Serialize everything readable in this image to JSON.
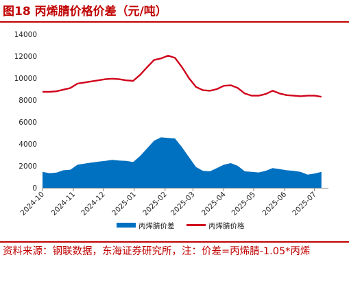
{
  "header": {
    "title": "图18  丙烯腈价格价差（元/吨）"
  },
  "footer": {
    "source": "资料来源：钢联数据，东海证券研究所，注：价差=丙烯腈-1.05*丙烯"
  },
  "colors": {
    "accent": "#c00000",
    "spread_fill": "#0070c0",
    "price_line": "#d0021b"
  },
  "chart_data": {
    "type": "area",
    "title": "",
    "xlabel": "",
    "ylabel": "",
    "ylim": [
      0,
      14000
    ],
    "yticks": [
      0,
      2000,
      4000,
      6000,
      8000,
      10000,
      12000,
      14000
    ],
    "xlim": [
      "2024-10-01",
      "2025-07-15"
    ],
    "xticks": [
      "2024-10",
      "2024-11",
      "2024-12",
      "2025-01",
      "2025-02",
      "2025-03",
      "2025-04",
      "2025-05",
      "2025-06",
      "2025-07"
    ],
    "grid": false,
    "legend_position": "bottom",
    "series": [
      {
        "name": "丙烯腈价差",
        "type": "area",
        "color": "#0070c0",
        "points": [
          [
            "2024-10-01",
            1450
          ],
          [
            "2024-10-08",
            1330
          ],
          [
            "2024-10-15",
            1380
          ],
          [
            "2024-10-22",
            1600
          ],
          [
            "2024-10-29",
            1650
          ],
          [
            "2024-11-05",
            2100
          ],
          [
            "2024-11-12",
            2200
          ],
          [
            "2024-11-19",
            2300
          ],
          [
            "2024-11-26",
            2380
          ],
          [
            "2024-12-03",
            2450
          ],
          [
            "2024-12-10",
            2550
          ],
          [
            "2024-12-17",
            2480
          ],
          [
            "2024-12-24",
            2450
          ],
          [
            "2024-12-31",
            2350
          ],
          [
            "2025-01-07",
            2900
          ],
          [
            "2025-01-14",
            3600
          ],
          [
            "2025-01-21",
            4300
          ],
          [
            "2025-01-28",
            4600
          ],
          [
            "2025-02-04",
            4550
          ],
          [
            "2025-02-11",
            4500
          ],
          [
            "2025-02-18",
            3700
          ],
          [
            "2025-02-25",
            2800
          ],
          [
            "2025-03-04",
            1900
          ],
          [
            "2025-03-11",
            1550
          ],
          [
            "2025-03-18",
            1500
          ],
          [
            "2025-03-25",
            1800
          ],
          [
            "2025-04-01",
            2100
          ],
          [
            "2025-04-08",
            2250
          ],
          [
            "2025-04-15",
            2000
          ],
          [
            "2025-04-22",
            1500
          ],
          [
            "2025-04-29",
            1450
          ],
          [
            "2025-05-06",
            1400
          ],
          [
            "2025-05-13",
            1550
          ],
          [
            "2025-05-20",
            1800
          ],
          [
            "2025-05-27",
            1700
          ],
          [
            "2025-06-03",
            1600
          ],
          [
            "2025-06-10",
            1550
          ],
          [
            "2025-06-17",
            1450
          ],
          [
            "2025-06-24",
            1200
          ],
          [
            "2025-07-01",
            1300
          ],
          [
            "2025-07-08",
            1450
          ]
        ]
      },
      {
        "name": "丙烯腈价格",
        "type": "line",
        "color": "#d0021b",
        "points": [
          [
            "2024-10-01",
            8750
          ],
          [
            "2024-10-08",
            8750
          ],
          [
            "2024-10-15",
            8800
          ],
          [
            "2024-10-22",
            8950
          ],
          [
            "2024-10-29",
            9100
          ],
          [
            "2024-11-05",
            9500
          ],
          [
            "2024-11-12",
            9600
          ],
          [
            "2024-11-19",
            9700
          ],
          [
            "2024-11-26",
            9800
          ],
          [
            "2024-12-03",
            9900
          ],
          [
            "2024-12-10",
            9950
          ],
          [
            "2024-12-17",
            9900
          ],
          [
            "2024-12-24",
            9800
          ],
          [
            "2024-12-31",
            9750
          ],
          [
            "2025-01-07",
            10300
          ],
          [
            "2025-01-14",
            11000
          ],
          [
            "2025-01-21",
            11650
          ],
          [
            "2025-01-28",
            11800
          ],
          [
            "2025-02-04",
            12050
          ],
          [
            "2025-02-11",
            11850
          ],
          [
            "2025-02-18",
            11000
          ],
          [
            "2025-02-25",
            10000
          ],
          [
            "2025-03-04",
            9200
          ],
          [
            "2025-03-11",
            8900
          ],
          [
            "2025-03-18",
            8850
          ],
          [
            "2025-03-25",
            9000
          ],
          [
            "2025-04-01",
            9300
          ],
          [
            "2025-04-08",
            9350
          ],
          [
            "2025-04-15",
            9100
          ],
          [
            "2025-04-22",
            8600
          ],
          [
            "2025-04-29",
            8400
          ],
          [
            "2025-05-06",
            8400
          ],
          [
            "2025-05-13",
            8550
          ],
          [
            "2025-05-20",
            8850
          ],
          [
            "2025-05-27",
            8600
          ],
          [
            "2025-06-03",
            8450
          ],
          [
            "2025-06-10",
            8400
          ],
          [
            "2025-06-17",
            8350
          ],
          [
            "2025-06-24",
            8400
          ],
          [
            "2025-07-01",
            8400
          ],
          [
            "2025-07-08",
            8300
          ]
        ]
      }
    ]
  }
}
